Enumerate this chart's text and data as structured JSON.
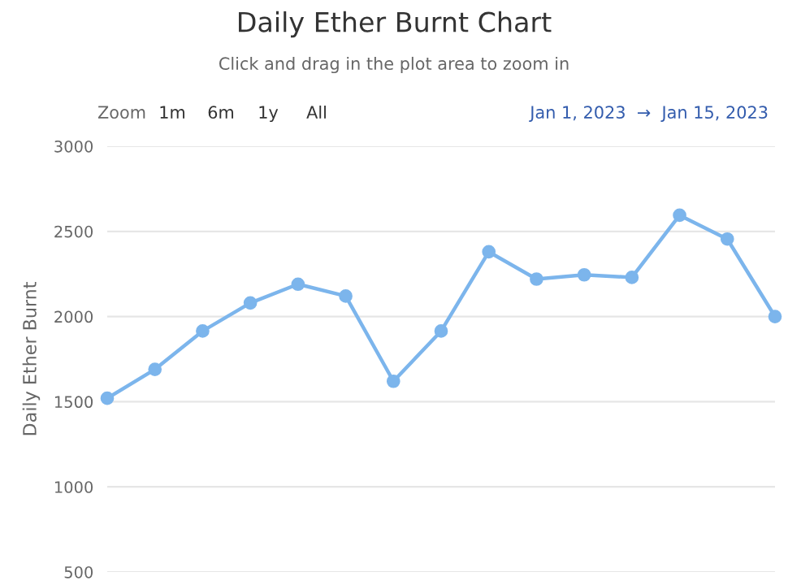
{
  "chart_data": {
    "type": "line",
    "title": "Daily Ether Burnt Chart",
    "subtitle": "Click and drag in the plot area to zoom in",
    "ylabel": "Daily Ether Burnt",
    "annotations": [
      "Zoom",
      "1m",
      "6m",
      "1y",
      "All",
      "Jan 1, 2023  →  Jan 15, 2023"
    ],
    "categories": [
      null,
      null,
      null,
      null,
      null,
      null,
      null,
      null,
      null,
      null,
      null,
      null,
      null,
      null,
      null
    ],
    "series": [
      {
        "color": "#7cb5ec",
        "values": [
          1520,
          1690,
          1915,
          2080,
          2190,
          2120,
          1620,
          1915,
          2380,
          2220,
          2245,
          2230,
          2595,
          2455,
          2000
        ]
      }
    ],
    "ylim": [
      500,
      3000
    ],
    "yticks": [
      500,
      1000,
      1500,
      2000,
      2500,
      3000
    ],
    "grid": "y",
    "tick_labels": "y",
    "marker": "circle",
    "line_style": "solid",
    "legend": false
  }
}
